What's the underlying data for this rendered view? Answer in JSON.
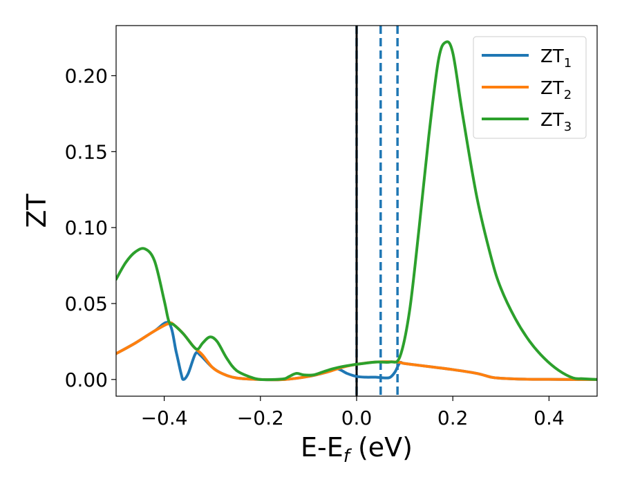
{
  "chart_data": {
    "type": "line",
    "title": "",
    "xlabel": {
      "main": "E-E",
      "sub": "f",
      "unit": " (eV)"
    },
    "ylabel": "ZT",
    "xlim": [
      -0.5,
      0.5
    ],
    "ylim": [
      -0.011,
      0.233
    ],
    "x_ticks": [
      -0.4,
      -0.2,
      0.0,
      0.2,
      0.4
    ],
    "x_tick_labels": [
      "−0.4",
      "−0.2",
      "0.0",
      "0.2",
      "0.4"
    ],
    "y_ticks": [
      0.0,
      0.05,
      0.1,
      0.15,
      0.2
    ],
    "y_tick_labels": [
      "0.00",
      "0.05",
      "0.10",
      "0.15",
      "0.20"
    ],
    "grid": false,
    "legend": "top-right",
    "vertical_lines": [
      {
        "x": 0.0,
        "style": "solid",
        "color": "#000000"
      },
      {
        "x": 0.0,
        "style": "dashed",
        "color": "#1f77b4"
      },
      {
        "x": 0.05,
        "style": "dashed",
        "color": "#1f77b4"
      },
      {
        "x": 0.085,
        "style": "dashed",
        "color": "#1f77b4"
      }
    ],
    "series": [
      {
        "name": "ZT",
        "sub": "1",
        "color": "#1f77b4",
        "points": [
          [
            -0.5,
            0.017
          ],
          [
            -0.46,
            0.024
          ],
          [
            -0.42,
            0.032
          ],
          [
            -0.39,
            0.037
          ],
          [
            -0.375,
            0.018
          ],
          [
            -0.365,
            0.004
          ],
          [
            -0.36,
            0.0
          ],
          [
            -0.35,
            0.004
          ],
          [
            -0.335,
            0.017
          ],
          [
            -0.325,
            0.016
          ],
          [
            -0.3,
            0.008
          ],
          [
            -0.28,
            0.004
          ],
          [
            -0.25,
            0.001
          ],
          [
            -0.2,
            0.0
          ],
          [
            -0.15,
            0.0
          ],
          [
            -0.1,
            0.002
          ],
          [
            -0.06,
            0.005
          ],
          [
            -0.04,
            0.007
          ],
          [
            -0.02,
            0.004
          ],
          [
            0.0,
            0.002
          ],
          [
            0.02,
            0.0015
          ],
          [
            0.04,
            0.0015
          ],
          [
            0.06,
            0.001
          ],
          [
            0.07,
            0.0015
          ],
          [
            0.08,
            0.005
          ],
          [
            0.09,
            0.011
          ],
          [
            0.1,
            0.0105
          ],
          [
            0.15,
            0.0085
          ],
          [
            0.2,
            0.0065
          ],
          [
            0.25,
            0.004
          ],
          [
            0.28,
            0.0015
          ],
          [
            0.3,
            0.0008
          ],
          [
            0.35,
            0.0002
          ],
          [
            0.4,
            0.0001
          ],
          [
            0.45,
            0.0
          ],
          [
            0.5,
            0.0
          ]
        ]
      },
      {
        "name": "ZT",
        "sub": "2",
        "color": "#ff7f0e",
        "points": [
          [
            -0.5,
            0.017
          ],
          [
            -0.46,
            0.024
          ],
          [
            -0.42,
            0.032
          ],
          [
            -0.39,
            0.037
          ],
          [
            -0.38,
            0.036
          ],
          [
            -0.36,
            0.03
          ],
          [
            -0.34,
            0.022
          ],
          [
            -0.33,
            0.019
          ],
          [
            -0.32,
            0.016
          ],
          [
            -0.3,
            0.008
          ],
          [
            -0.28,
            0.004
          ],
          [
            -0.25,
            0.001
          ],
          [
            -0.2,
            0.0
          ],
          [
            -0.15,
            0.0
          ],
          [
            -0.1,
            0.002
          ],
          [
            -0.06,
            0.005
          ],
          [
            -0.03,
            0.008
          ],
          [
            0.0,
            0.01
          ],
          [
            0.04,
            0.0115
          ],
          [
            0.085,
            0.0115
          ],
          [
            0.1,
            0.0105
          ],
          [
            0.15,
            0.0085
          ],
          [
            0.2,
            0.0065
          ],
          [
            0.25,
            0.004
          ],
          [
            0.28,
            0.0015
          ],
          [
            0.3,
            0.0008
          ],
          [
            0.35,
            0.0002
          ],
          [
            0.4,
            0.0001
          ],
          [
            0.45,
            0.0
          ],
          [
            0.5,
            0.0
          ]
        ]
      },
      {
        "name": "ZT",
        "sub": "3",
        "color": "#2ca02c",
        "points": [
          [
            -0.5,
            0.066
          ],
          [
            -0.48,
            0.077
          ],
          [
            -0.46,
            0.084
          ],
          [
            -0.44,
            0.086
          ],
          [
            -0.42,
            0.078
          ],
          [
            -0.4,
            0.052
          ],
          [
            -0.39,
            0.038
          ],
          [
            -0.38,
            0.036
          ],
          [
            -0.36,
            0.03
          ],
          [
            -0.34,
            0.022
          ],
          [
            -0.33,
            0.02
          ],
          [
            -0.32,
            0.024
          ],
          [
            -0.305,
            0.028
          ],
          [
            -0.29,
            0.025
          ],
          [
            -0.27,
            0.014
          ],
          [
            -0.25,
            0.006
          ],
          [
            -0.22,
            0.0015
          ],
          [
            -0.2,
            0.0
          ],
          [
            -0.17,
            0.0
          ],
          [
            -0.15,
            0.0005
          ],
          [
            -0.14,
            0.002
          ],
          [
            -0.125,
            0.004
          ],
          [
            -0.11,
            0.003
          ],
          [
            -0.09,
            0.003
          ],
          [
            -0.07,
            0.005
          ],
          [
            -0.05,
            0.007
          ],
          [
            -0.03,
            0.0085
          ],
          [
            0.0,
            0.01
          ],
          [
            0.04,
            0.0115
          ],
          [
            0.07,
            0.0115
          ],
          [
            0.09,
            0.015
          ],
          [
            0.11,
            0.045
          ],
          [
            0.13,
            0.1
          ],
          [
            0.15,
            0.16
          ],
          [
            0.17,
            0.21
          ],
          [
            0.185,
            0.222
          ],
          [
            0.2,
            0.215
          ],
          [
            0.22,
            0.175
          ],
          [
            0.25,
            0.12
          ],
          [
            0.28,
            0.08
          ],
          [
            0.3,
            0.06
          ],
          [
            0.33,
            0.04
          ],
          [
            0.36,
            0.025
          ],
          [
            0.39,
            0.014
          ],
          [
            0.42,
            0.006
          ],
          [
            0.45,
            0.001
          ],
          [
            0.47,
            0.0005
          ],
          [
            0.5,
            0.0
          ]
        ]
      }
    ]
  }
}
